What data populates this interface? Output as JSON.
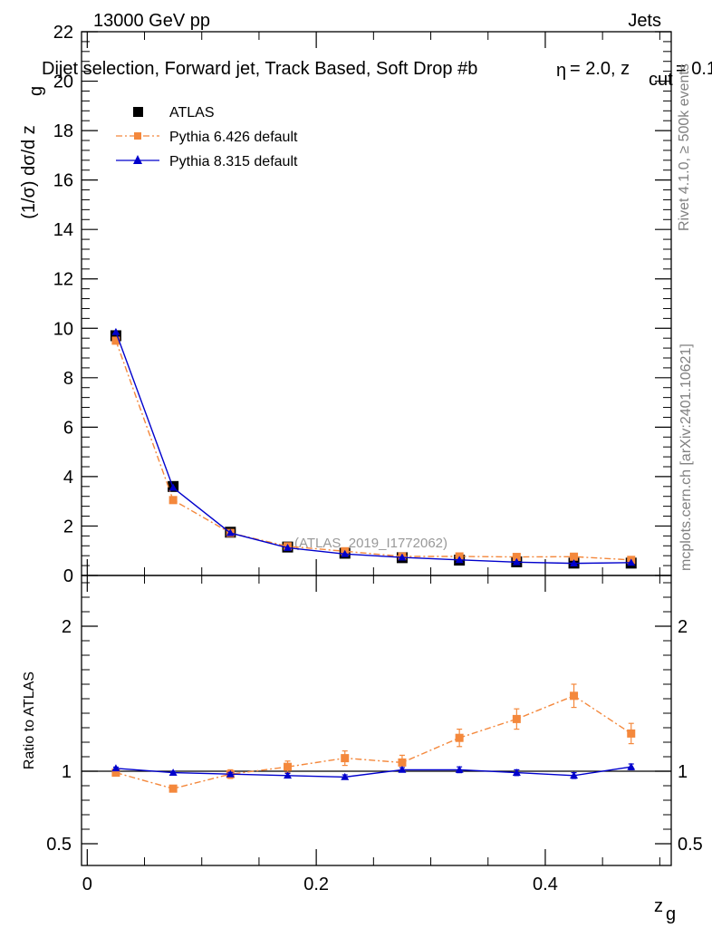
{
  "header": {
    "energy_label": "13000 GeV pp",
    "process_label": "Jets",
    "title": "Dijet selection, Forward jet, Track Based, Soft Drop #b",
    "title_suffix": "= 2.0, z",
    "title_sub": "cut",
    "title_tail": "= 0.1",
    "title_eta": "η"
  },
  "side_labels": {
    "rivet": "Rivet 4.1.0, ≥ 500k events",
    "mcplots": "mcplots.cern.ch [arXiv:2401.10621]"
  },
  "watermark": "(ATLAS_2019_I1772062)",
  "chart_data": [
    {
      "type": "line",
      "panel": "main",
      "ylabel": "(1/σ) dσ/d z",
      "ylabel_sub": "g",
      "xlim": [
        -0.005,
        0.51
      ],
      "ylim": [
        0,
        22
      ],
      "yticks": [
        0,
        2,
        4,
        6,
        8,
        10,
        12,
        14,
        16,
        18,
        20,
        22
      ],
      "x": [
        0.025,
        0.075,
        0.125,
        0.175,
        0.225,
        0.275,
        0.325,
        0.375,
        0.425,
        0.475
      ],
      "series": [
        {
          "name": "ATLAS",
          "color": "#000000",
          "marker": "square",
          "values": [
            9.7,
            3.6,
            1.75,
            1.15,
            0.9,
            0.72,
            0.62,
            0.55,
            0.5,
            0.5
          ]
        },
        {
          "name": "Pythia 6.426 default",
          "color": "#f4883c",
          "marker": "square",
          "dash": "dashdot",
          "values": [
            9.5,
            3.05,
            1.72,
            1.18,
            0.98,
            0.77,
            0.77,
            0.75,
            0.76,
            0.63
          ]
        },
        {
          "name": "Pythia 8.315 default",
          "color": "#0000cc",
          "marker": "triangle",
          "values": [
            9.85,
            3.55,
            1.72,
            1.12,
            0.87,
            0.73,
            0.63,
            0.54,
            0.49,
            0.52
          ]
        }
      ]
    },
    {
      "type": "line",
      "panel": "ratio",
      "ylabel": "Ratio to ATLAS",
      "xlabel": "z",
      "xlabel_sub": "g",
      "xlim": [
        -0.005,
        0.51
      ],
      "ylim": [
        0.35,
        2.35
      ],
      "yticks": [
        0.5,
        1,
        2
      ],
      "ytick_labels": [
        "0.5",
        "1",
        "2"
      ],
      "xticks": [
        0,
        0.2,
        0.4
      ],
      "xtick_labels": [
        "0",
        "0.2",
        "0.4"
      ],
      "x": [
        0.025,
        0.075,
        0.125,
        0.175,
        0.225,
        0.275,
        0.325,
        0.375,
        0.425,
        0.475
      ],
      "series": [
        {
          "name": "Pythia 6.426 default",
          "color": "#f4883c",
          "marker": "square",
          "dash": "dashdot",
          "values": [
            0.99,
            0.88,
            0.98,
            1.03,
            1.09,
            1.06,
            1.23,
            1.36,
            1.52,
            1.26
          ],
          "errors": [
            0.01,
            0.012,
            0.03,
            0.04,
            0.05,
            0.05,
            0.06,
            0.07,
            0.08,
            0.07
          ]
        },
        {
          "name": "Pythia 8.315 default",
          "color": "#0000cc",
          "marker": "triangle",
          "values": [
            1.02,
            0.99,
            0.98,
            0.97,
            0.96,
            1.01,
            1.01,
            0.99,
            0.97,
            1.03
          ],
          "errors": [
            0.008,
            0.01,
            0.012,
            0.015,
            0.015,
            0.015,
            0.02,
            0.02,
            0.02,
            0.02
          ]
        }
      ]
    }
  ]
}
